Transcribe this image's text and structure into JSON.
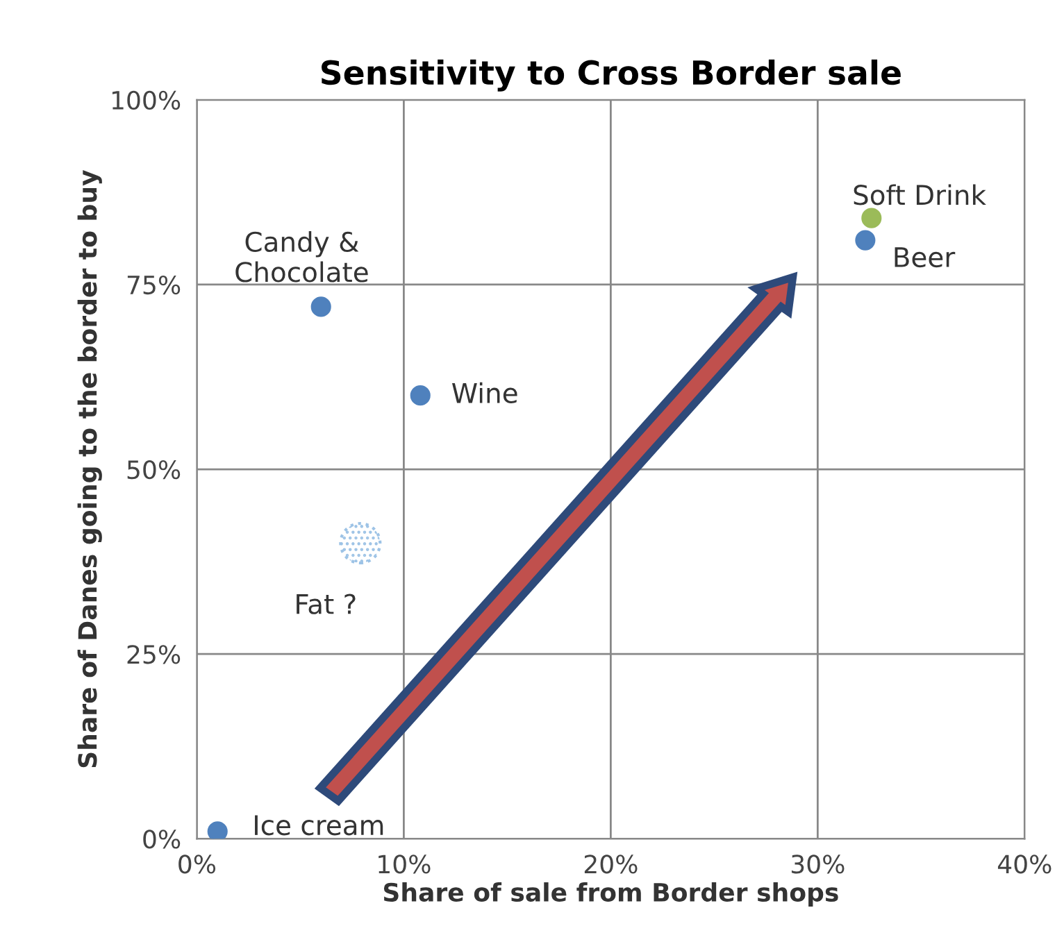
{
  "chart_data": {
    "type": "scatter",
    "title": "Sensitivity to Cross Border sale",
    "xlabel": "Share of sale from Border shops",
    "ylabel": "Share of Danes going to the border to buy",
    "series": [
      {
        "color": "#4f81bd",
        "x": [
          1,
          6,
          10.8,
          32.3
        ],
        "values": [
          1,
          72,
          60,
          81
        ]
      },
      {
        "color": "#9bbb59",
        "x": [
          32.6
        ],
        "values": [
          84
        ]
      },
      {
        "color": "#9dc3e6",
        "x": [
          7.9
        ],
        "values": [
          40
        ],
        "line_style": "dotted"
      }
    ],
    "annotations": [
      {
        "text": "Ice cream",
        "x": 1,
        "y": 1
      },
      {
        "text": "Candy &\nChocolate",
        "x": 6,
        "y": 72
      },
      {
        "text": "Wine",
        "x": 10.8,
        "y": 60
      },
      {
        "text": "Soft Drink",
        "x": 32.6,
        "y": 84
      },
      {
        "text": "Beer",
        "x": 32.3,
        "y": 81
      },
      {
        "text": "Fat ?",
        "x": 7.9,
        "y": 40
      }
    ],
    "xlim": [
      0,
      40
    ],
    "ylim": [
      0,
      100
    ],
    "xticks": [
      {
        "value": 0,
        "label": "0%"
      },
      {
        "value": 10,
        "label": "10%"
      },
      {
        "value": 20,
        "label": "20%"
      },
      {
        "value": 30,
        "label": "30%"
      },
      {
        "value": 40,
        "label": "40%"
      }
    ],
    "yticks": [
      {
        "value": 0,
        "label": "0%"
      },
      {
        "value": 25,
        "label": "25%"
      },
      {
        "value": 50,
        "label": "50%"
      },
      {
        "value": 75,
        "label": "75%"
      },
      {
        "value": 100,
        "label": "100%"
      }
    ],
    "grid": true,
    "marker": "circle",
    "legend": false
  }
}
